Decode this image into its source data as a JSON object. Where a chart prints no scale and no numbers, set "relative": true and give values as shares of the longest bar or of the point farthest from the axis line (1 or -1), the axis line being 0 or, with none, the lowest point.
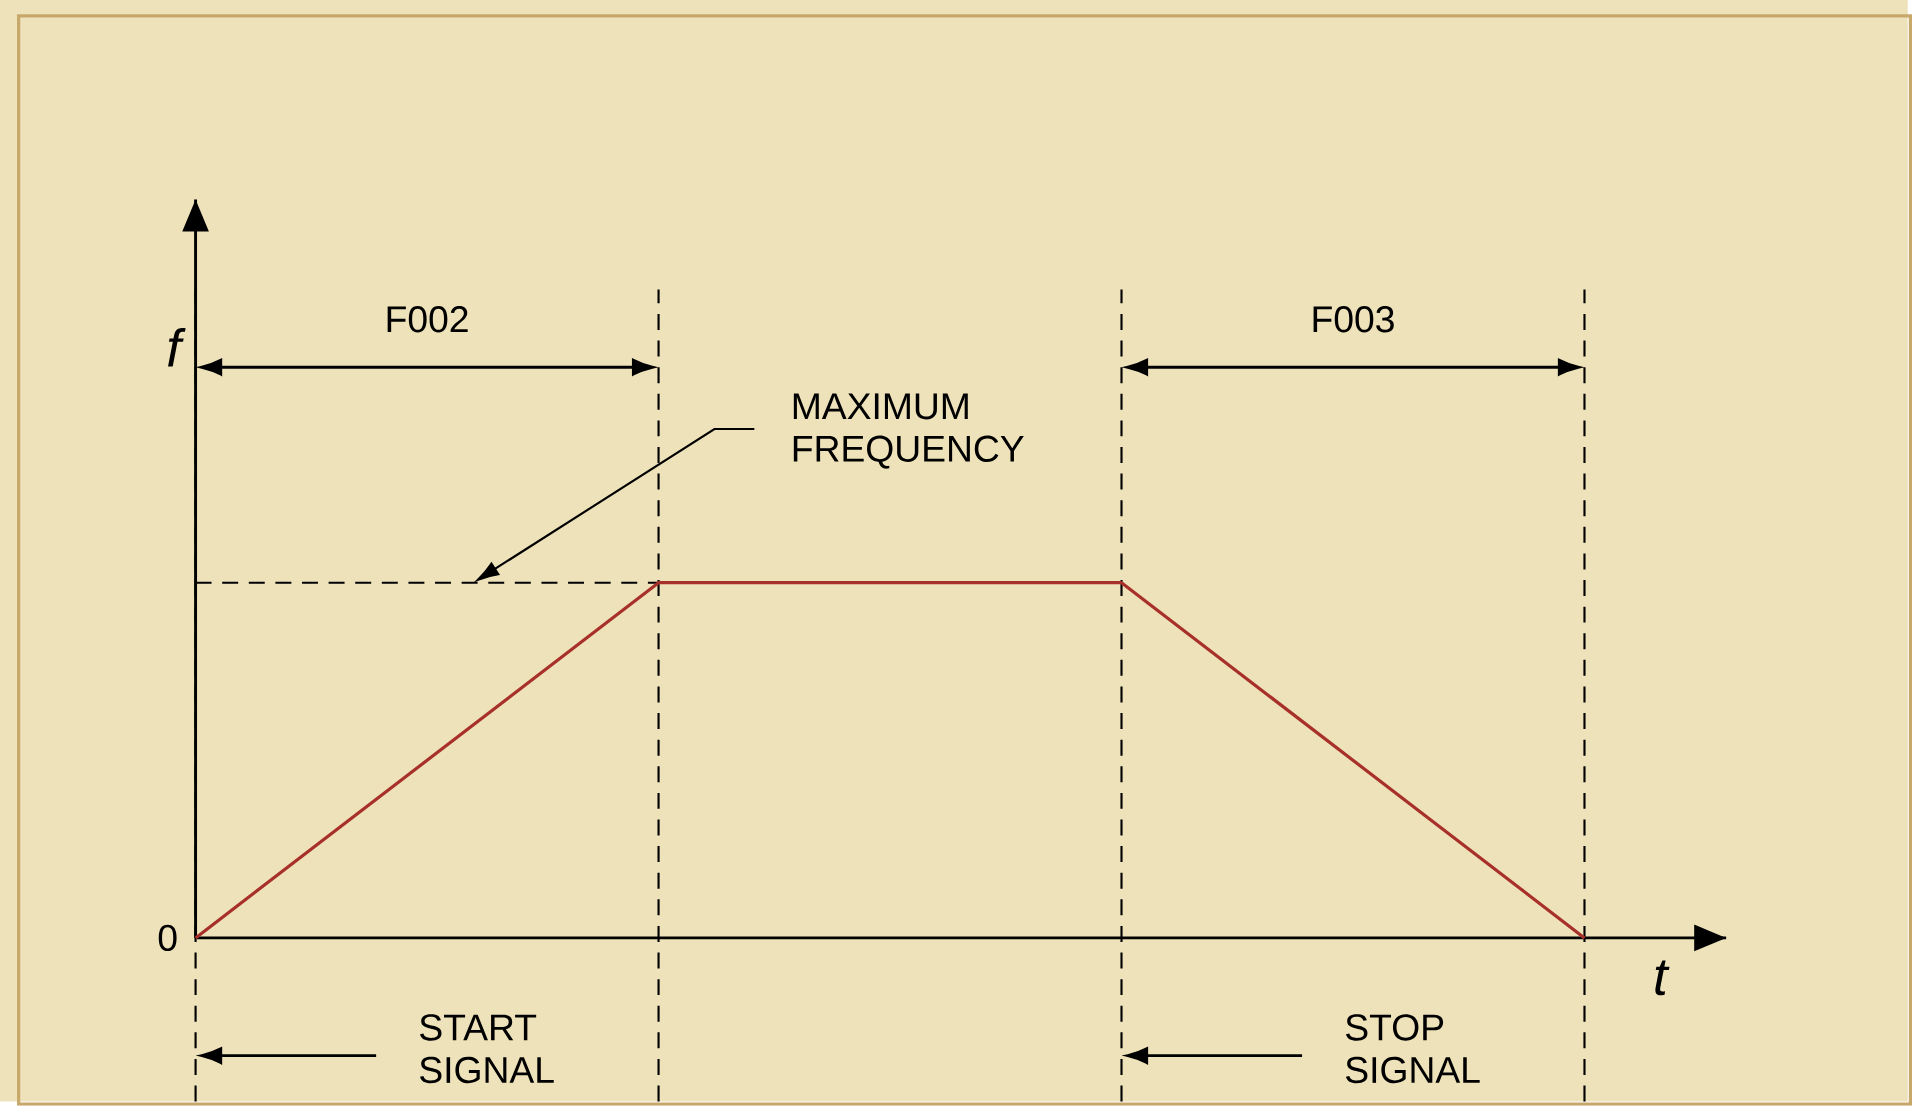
{
  "chart_data": {
    "type": "line",
    "relative": true,
    "grid": "x",
    "xlabel": "t",
    "ylabel": "f",
    "categories": [
      null,
      null,
      null,
      null
    ],
    "series": [
      {
        "color": "#a8302a",
        "values": [
          0,
          1,
          1,
          0
        ]
      }
    ],
    "ref_lines": [
      {
        "axis": "y",
        "value": 1,
        "line_style": "dashed",
        "color": "#000000",
        "label": "MAXIMUM FREQUENCY"
      }
    ],
    "annotations": [
      "0",
      "F002",
      "F003",
      "START SIGNAL",
      "STOP SIGNAL"
    ]
  }
}
